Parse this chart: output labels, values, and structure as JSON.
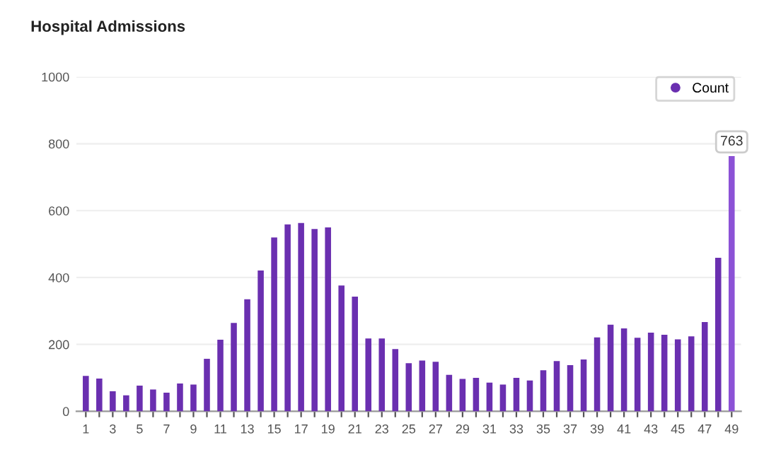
{
  "chart_data": {
    "type": "bar",
    "title": "Hospital Admissions",
    "categories": [
      "1",
      null,
      "3",
      null,
      "5",
      null,
      "7",
      null,
      "9",
      null,
      "11",
      null,
      "13",
      null,
      "15",
      null,
      "17",
      null,
      "19",
      null,
      "21",
      null,
      "23",
      null,
      "25",
      null,
      "27",
      null,
      "29",
      null,
      "31",
      null,
      "33",
      null,
      "35",
      null,
      "37",
      null,
      "39",
      null,
      "41",
      null,
      "43",
      null,
      "45",
      null,
      "47",
      null,
      "49"
    ],
    "series": [
      {
        "name": "Count",
        "color": "#6a2fb0",
        "colors": [
          "#6a2fb0",
          "#6a2fb0",
          "#6a2fb0",
          "#6a2fb0",
          "#6a2fb0",
          "#6a2fb0",
          "#6a2fb0",
          "#6a2fb0",
          "#6a2fb0",
          "#6a2fb0",
          "#6a2fb0",
          "#6a2fb0",
          "#6a2fb0",
          "#6a2fb0",
          "#6a2fb0",
          "#6a2fb0",
          "#6a2fb0",
          "#6a2fb0",
          "#6a2fb0",
          "#6a2fb0",
          "#6a2fb0",
          "#6a2fb0",
          "#6a2fb0",
          "#6a2fb0",
          "#6a2fb0",
          "#6a2fb0",
          "#6a2fb0",
          "#6a2fb0",
          "#6a2fb0",
          "#6a2fb0",
          "#6a2fb0",
          "#6a2fb0",
          "#6a2fb0",
          "#6a2fb0",
          "#6a2fb0",
          "#6a2fb0",
          "#6a2fb0",
          "#6a2fb0",
          "#6a2fb0",
          "#6a2fb0",
          "#6a2fb0",
          "#6a2fb0",
          "#6a2fb0",
          "#6a2fb0",
          "#6a2fb0",
          "#6a2fb0",
          "#6a2fb0",
          "#6a2fb0",
          "#8c52d6"
        ],
        "values": [
          106,
          98,
          60,
          48,
          77,
          65,
          56,
          83,
          80,
          157,
          214,
          264,
          335,
          421,
          520,
          559,
          563,
          545,
          550,
          376,
          343,
          218,
          218,
          186,
          144,
          152,
          148,
          109,
          97,
          100,
          86,
          80,
          100,
          92,
          123,
          150,
          138,
          155,
          221,
          259,
          248,
          220,
          235,
          229,
          215,
          224,
          267,
          459,
          763
        ],
        "value_labels": [
          null,
          null,
          null,
          null,
          null,
          null,
          null,
          null,
          null,
          null,
          null,
          null,
          null,
          null,
          null,
          null,
          null,
          null,
          null,
          null,
          null,
          null,
          null,
          null,
          null,
          null,
          null,
          null,
          null,
          null,
          null,
          null,
          null,
          null,
          null,
          null,
          null,
          null,
          null,
          null,
          null,
          null,
          null,
          null,
          null,
          null,
          null,
          null,
          "763"
        ]
      }
    ],
    "ylim": [
      0,
      1000
    ],
    "yticks": [
      0,
      200,
      400,
      600,
      800,
      1000
    ],
    "grid": "y",
    "legend": "top right"
  }
}
